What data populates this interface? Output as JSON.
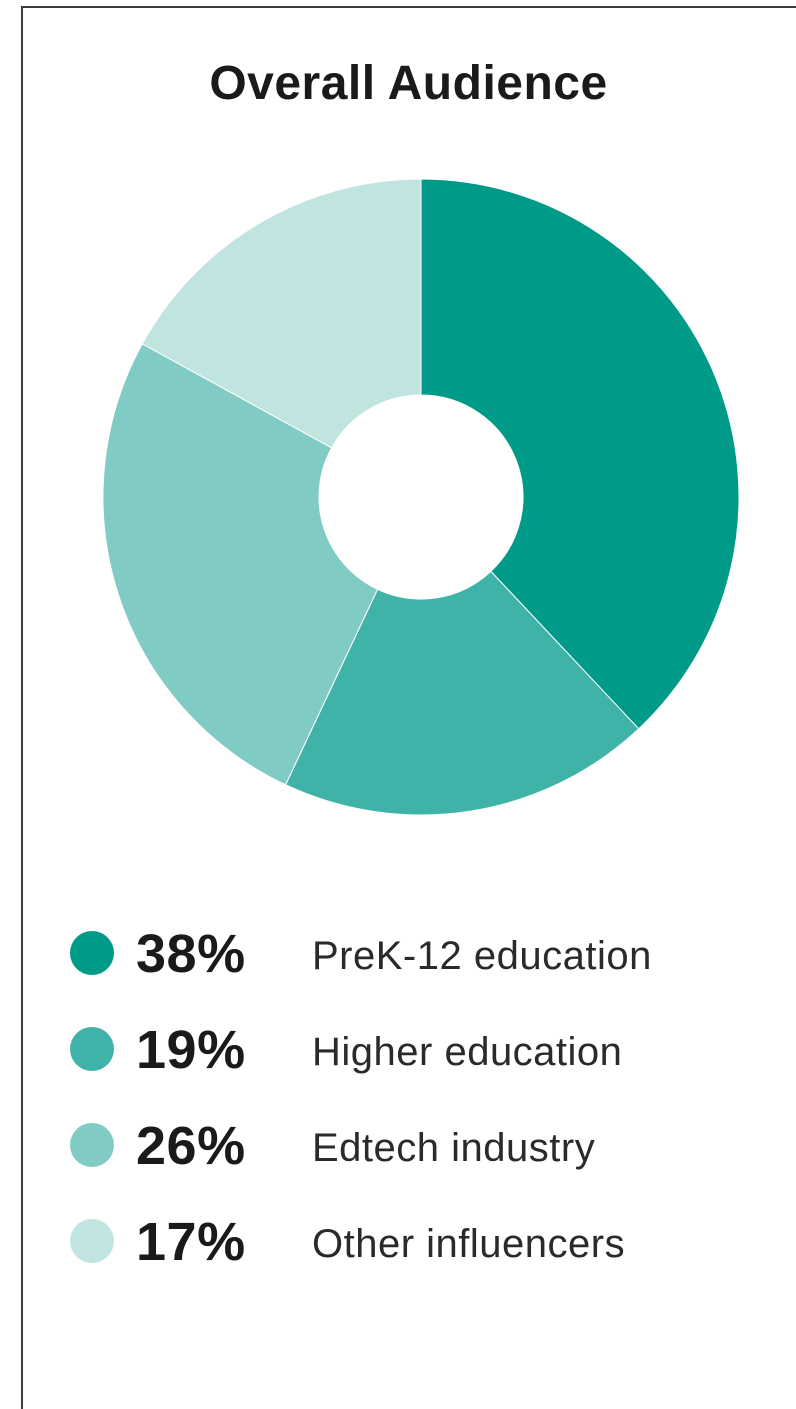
{
  "chart_data": {
    "type": "pie",
    "variant": "donut",
    "title": "Overall Audience",
    "categories": [
      "PreK-12 education",
      "Higher education",
      "Edtech industry",
      "Other influencers"
    ],
    "values": [
      38,
      19,
      26,
      17
    ],
    "value_labels": [
      "38%",
      "19%",
      "26%",
      "17%"
    ],
    "colors": [
      "#009a88",
      "#40b3a8",
      "#80cbc3",
      "#c0e5e1"
    ],
    "start_angle": "12 o'clock",
    "direction": "clockwise",
    "legend_position": "bottom"
  }
}
